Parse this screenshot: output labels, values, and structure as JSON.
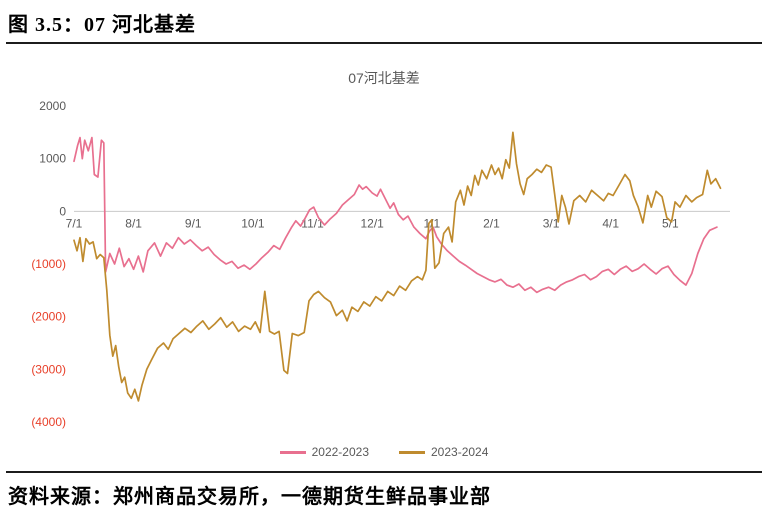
{
  "header": {
    "title": "图 3.5：07 河北基差"
  },
  "footer": {
    "source": "资料来源：郑州商品交易所，一德期货生鲜品事业部"
  },
  "chart_data": {
    "type": "line",
    "title": "07河北基差",
    "xlabel": "",
    "ylabel": "",
    "xticklabels": [
      "7/1",
      "8/1",
      "9/1",
      "10/1",
      "11/1",
      "12/1",
      "1/1",
      "2/1",
      "3/1",
      "4/1",
      "5/1"
    ],
    "yticks": [
      2000,
      1000,
      0,
      -1000,
      -2000,
      -3000,
      -4000
    ],
    "xlim": [
      0,
      11
    ],
    "ylim": [
      -4000,
      2000
    ],
    "grid": false,
    "legend_position": "bottom",
    "negative_tick_format": "parentheses_red",
    "colors": {
      "tick": "#595959",
      "negative_tick": "#e8402a",
      "axis": "#c9c9c9",
      "title": "#595959"
    },
    "series": [
      {
        "name": "2022-2023",
        "color": "#e8708f",
        "points": [
          [
            0.0,
            950
          ],
          [
            0.06,
            1250
          ],
          [
            0.1,
            1400
          ],
          [
            0.14,
            1000
          ],
          [
            0.18,
            1350
          ],
          [
            0.24,
            1150
          ],
          [
            0.3,
            1400
          ],
          [
            0.34,
            700
          ],
          [
            0.4,
            650
          ],
          [
            0.46,
            1350
          ],
          [
            0.5,
            1300
          ],
          [
            0.53,
            -1150
          ],
          [
            0.6,
            -800
          ],
          [
            0.68,
            -1000
          ],
          [
            0.76,
            -700
          ],
          [
            0.84,
            -1050
          ],
          [
            0.92,
            -900
          ],
          [
            1.0,
            -1100
          ],
          [
            1.08,
            -850
          ],
          [
            1.16,
            -1150
          ],
          [
            1.24,
            -750
          ],
          [
            1.35,
            -600
          ],
          [
            1.45,
            -850
          ],
          [
            1.55,
            -600
          ],
          [
            1.65,
            -700
          ],
          [
            1.75,
            -500
          ],
          [
            1.85,
            -620
          ],
          [
            1.95,
            -540
          ],
          [
            2.05,
            -650
          ],
          [
            2.15,
            -750
          ],
          [
            2.25,
            -680
          ],
          [
            2.35,
            -820
          ],
          [
            2.45,
            -920
          ],
          [
            2.55,
            -1000
          ],
          [
            2.65,
            -950
          ],
          [
            2.75,
            -1080
          ],
          [
            2.85,
            -1020
          ],
          [
            2.95,
            -1100
          ],
          [
            3.05,
            -1000
          ],
          [
            3.15,
            -880
          ],
          [
            3.25,
            -780
          ],
          [
            3.35,
            -650
          ],
          [
            3.45,
            -720
          ],
          [
            3.55,
            -500
          ],
          [
            3.65,
            -300
          ],
          [
            3.72,
            -180
          ],
          [
            3.8,
            -280
          ],
          [
            3.88,
            -120
          ],
          [
            3.95,
            30
          ],
          [
            4.02,
            80
          ],
          [
            4.1,
            -120
          ],
          [
            4.2,
            -260
          ],
          [
            4.3,
            -140
          ],
          [
            4.4,
            -40
          ],
          [
            4.5,
            120
          ],
          [
            4.6,
            220
          ],
          [
            4.7,
            320
          ],
          [
            4.78,
            500
          ],
          [
            4.84,
            420
          ],
          [
            4.9,
            470
          ],
          [
            5.0,
            350
          ],
          [
            5.08,
            290
          ],
          [
            5.14,
            420
          ],
          [
            5.22,
            240
          ],
          [
            5.3,
            60
          ],
          [
            5.36,
            160
          ],
          [
            5.44,
            -60
          ],
          [
            5.52,
            -160
          ],
          [
            5.6,
            -90
          ],
          [
            5.7,
            -300
          ],
          [
            5.8,
            -420
          ],
          [
            5.9,
            -520
          ],
          [
            5.96,
            -380
          ],
          [
            6.02,
            -300
          ],
          [
            6.08,
            -480
          ],
          [
            6.16,
            -620
          ],
          [
            6.26,
            -750
          ],
          [
            6.36,
            -850
          ],
          [
            6.46,
            -950
          ],
          [
            6.56,
            -1020
          ],
          [
            6.66,
            -1100
          ],
          [
            6.76,
            -1180
          ],
          [
            6.86,
            -1240
          ],
          [
            6.96,
            -1300
          ],
          [
            7.06,
            -1340
          ],
          [
            7.16,
            -1290
          ],
          [
            7.26,
            -1400
          ],
          [
            7.36,
            -1440
          ],
          [
            7.46,
            -1380
          ],
          [
            7.56,
            -1500
          ],
          [
            7.66,
            -1440
          ],
          [
            7.76,
            -1540
          ],
          [
            7.86,
            -1480
          ],
          [
            7.96,
            -1440
          ],
          [
            8.06,
            -1500
          ],
          [
            8.16,
            -1400
          ],
          [
            8.26,
            -1340
          ],
          [
            8.36,
            -1300
          ],
          [
            8.46,
            -1240
          ],
          [
            8.56,
            -1200
          ],
          [
            8.66,
            -1300
          ],
          [
            8.76,
            -1240
          ],
          [
            8.86,
            -1140
          ],
          [
            8.96,
            -1100
          ],
          [
            9.06,
            -1200
          ],
          [
            9.16,
            -1100
          ],
          [
            9.26,
            -1040
          ],
          [
            9.36,
            -1140
          ],
          [
            9.46,
            -1090
          ],
          [
            9.56,
            -1000
          ],
          [
            9.66,
            -1100
          ],
          [
            9.76,
            -1190
          ],
          [
            9.86,
            -1090
          ],
          [
            9.96,
            -1040
          ],
          [
            10.06,
            -1200
          ],
          [
            10.16,
            -1310
          ],
          [
            10.26,
            -1400
          ],
          [
            10.36,
            -1180
          ],
          [
            10.46,
            -800
          ],
          [
            10.56,
            -520
          ],
          [
            10.66,
            -360
          ],
          [
            10.78,
            -300
          ]
        ]
      },
      {
        "name": "2023-2024",
        "color": "#bf8b2e",
        "points": [
          [
            0.0,
            -550
          ],
          [
            0.05,
            -750
          ],
          [
            0.1,
            -500
          ],
          [
            0.15,
            -950
          ],
          [
            0.2,
            -520
          ],
          [
            0.26,
            -620
          ],
          [
            0.32,
            -580
          ],
          [
            0.38,
            -900
          ],
          [
            0.44,
            -820
          ],
          [
            0.5,
            -880
          ],
          [
            0.55,
            -1500
          ],
          [
            0.6,
            -2350
          ],
          [
            0.65,
            -2750
          ],
          [
            0.7,
            -2550
          ],
          [
            0.75,
            -2950
          ],
          [
            0.8,
            -3250
          ],
          [
            0.85,
            -3150
          ],
          [
            0.9,
            -3450
          ],
          [
            0.96,
            -3550
          ],
          [
            1.02,
            -3380
          ],
          [
            1.08,
            -3600
          ],
          [
            1.14,
            -3300
          ],
          [
            1.22,
            -3000
          ],
          [
            1.3,
            -2820
          ],
          [
            1.4,
            -2600
          ],
          [
            1.5,
            -2500
          ],
          [
            1.58,
            -2620
          ],
          [
            1.66,
            -2420
          ],
          [
            1.76,
            -2320
          ],
          [
            1.86,
            -2220
          ],
          [
            1.96,
            -2300
          ],
          [
            2.06,
            -2180
          ],
          [
            2.16,
            -2080
          ],
          [
            2.26,
            -2240
          ],
          [
            2.36,
            -2140
          ],
          [
            2.46,
            -2020
          ],
          [
            2.56,
            -2200
          ],
          [
            2.66,
            -2100
          ],
          [
            2.76,
            -2280
          ],
          [
            2.86,
            -2180
          ],
          [
            2.96,
            -2240
          ],
          [
            3.04,
            -2100
          ],
          [
            3.12,
            -2300
          ],
          [
            3.2,
            -1520
          ],
          [
            3.28,
            -2280
          ],
          [
            3.36,
            -2330
          ],
          [
            3.44,
            -2280
          ],
          [
            3.52,
            -3020
          ],
          [
            3.58,
            -3080
          ],
          [
            3.66,
            -2320
          ],
          [
            3.76,
            -2360
          ],
          [
            3.86,
            -2300
          ],
          [
            3.94,
            -1700
          ],
          [
            4.02,
            -1580
          ],
          [
            4.1,
            -1520
          ],
          [
            4.2,
            -1640
          ],
          [
            4.3,
            -1720
          ],
          [
            4.4,
            -1980
          ],
          [
            4.5,
            -1880
          ],
          [
            4.58,
            -2080
          ],
          [
            4.66,
            -1820
          ],
          [
            4.76,
            -1900
          ],
          [
            4.86,
            -1720
          ],
          [
            4.96,
            -1800
          ],
          [
            5.06,
            -1620
          ],
          [
            5.16,
            -1700
          ],
          [
            5.26,
            -1520
          ],
          [
            5.36,
            -1600
          ],
          [
            5.46,
            -1420
          ],
          [
            5.56,
            -1500
          ],
          [
            5.66,
            -1320
          ],
          [
            5.76,
            -1240
          ],
          [
            5.84,
            -1300
          ],
          [
            5.9,
            -1120
          ],
          [
            5.95,
            -230
          ],
          [
            6.0,
            -160
          ],
          [
            6.05,
            -1080
          ],
          [
            6.12,
            -980
          ],
          [
            6.2,
            -420
          ],
          [
            6.28,
            -300
          ],
          [
            6.34,
            -580
          ],
          [
            6.4,
            180
          ],
          [
            6.48,
            400
          ],
          [
            6.54,
            120
          ],
          [
            6.6,
            480
          ],
          [
            6.66,
            300
          ],
          [
            6.72,
            680
          ],
          [
            6.78,
            500
          ],
          [
            6.84,
            780
          ],
          [
            6.92,
            620
          ],
          [
            7.0,
            880
          ],
          [
            7.06,
            700
          ],
          [
            7.12,
            820
          ],
          [
            7.18,
            620
          ],
          [
            7.24,
            980
          ],
          [
            7.3,
            820
          ],
          [
            7.36,
            1500
          ],
          [
            7.42,
            900
          ],
          [
            7.48,
            520
          ],
          [
            7.54,
            320
          ],
          [
            7.6,
            620
          ],
          [
            7.68,
            700
          ],
          [
            7.76,
            800
          ],
          [
            7.84,
            740
          ],
          [
            7.92,
            880
          ],
          [
            8.0,
            840
          ],
          [
            8.06,
            320
          ],
          [
            8.12,
            -200
          ],
          [
            8.18,
            300
          ],
          [
            8.24,
            80
          ],
          [
            8.3,
            -240
          ],
          [
            8.38,
            200
          ],
          [
            8.48,
            300
          ],
          [
            8.58,
            180
          ],
          [
            8.68,
            400
          ],
          [
            8.78,
            300
          ],
          [
            8.88,
            200
          ],
          [
            8.96,
            340
          ],
          [
            9.04,
            300
          ],
          [
            9.14,
            500
          ],
          [
            9.24,
            700
          ],
          [
            9.32,
            580
          ],
          [
            9.38,
            300
          ],
          [
            9.46,
            80
          ],
          [
            9.54,
            -220
          ],
          [
            9.62,
            300
          ],
          [
            9.68,
            80
          ],
          [
            9.76,
            380
          ],
          [
            9.86,
            280
          ],
          [
            9.94,
            -120
          ],
          [
            10.02,
            -200
          ],
          [
            10.08,
            180
          ],
          [
            10.16,
            80
          ],
          [
            10.26,
            300
          ],
          [
            10.36,
            180
          ],
          [
            10.44,
            260
          ],
          [
            10.54,
            320
          ],
          [
            10.62,
            780
          ],
          [
            10.68,
            520
          ],
          [
            10.76,
            620
          ],
          [
            10.84,
            440
          ]
        ]
      }
    ]
  }
}
